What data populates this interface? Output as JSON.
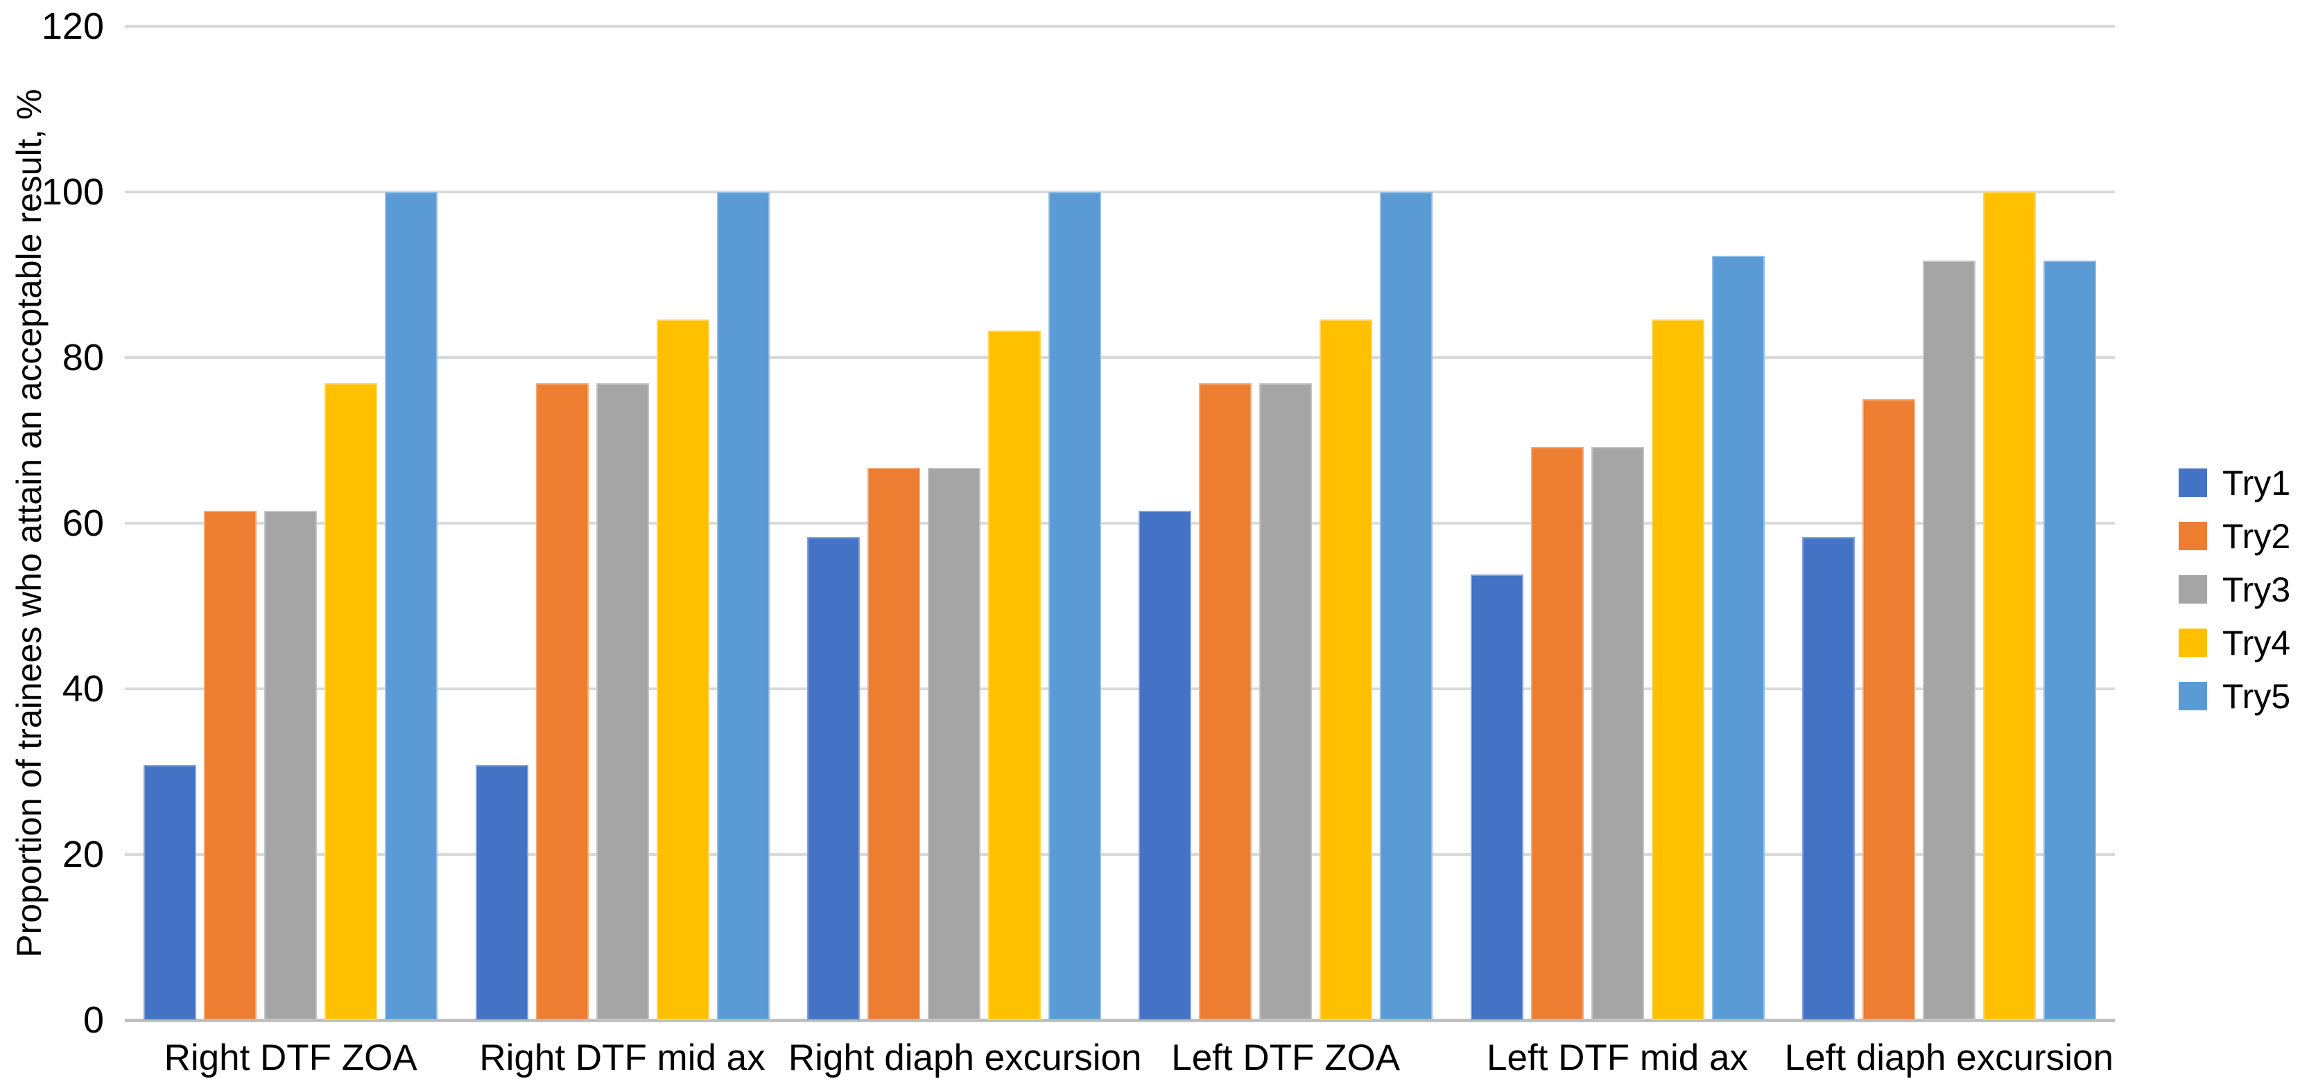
{
  "chart_data": {
    "type": "bar",
    "title": "",
    "xlabel": "",
    "ylabel": "Proportion of trainees who attain an acceptable result, %",
    "ylim": [
      0,
      120
    ],
    "yticks": [
      0,
      20,
      40,
      60,
      80,
      100,
      120
    ],
    "grid": true,
    "legend_position": "right",
    "categories": [
      "Right DTF ZOA",
      "Right DTF mid ax",
      "Right diaph excursion",
      "Left DTF ZOA",
      "Left DTF mid ax",
      "Left diaph excursion"
    ],
    "series": [
      {
        "name": "Try1",
        "color": "#4472C4",
        "values": [
          30.8,
          30.8,
          58.3,
          61.5,
          53.8,
          58.3
        ]
      },
      {
        "name": "Try2",
        "color": "#ED7D31",
        "values": [
          61.5,
          76.9,
          66.7,
          76.9,
          69.2,
          75.0
        ]
      },
      {
        "name": "Try3",
        "color": "#A5A5A5",
        "values": [
          61.5,
          76.9,
          66.7,
          76.9,
          69.2,
          91.7
        ]
      },
      {
        "name": "Try4",
        "color": "#FFC000",
        "values": [
          76.9,
          84.6,
          83.3,
          84.6,
          84.6,
          100.0
        ]
      },
      {
        "name": "Try5",
        "color": "#5B9BD5",
        "values": [
          100.0,
          100.0,
          100.0,
          100.0,
          92.3,
          91.7
        ]
      }
    ],
    "grid_color": "#D9D9D9",
    "axis_color": "#C0C0C0",
    "text_color": "#000000",
    "background_color": "#FFFFFF"
  }
}
